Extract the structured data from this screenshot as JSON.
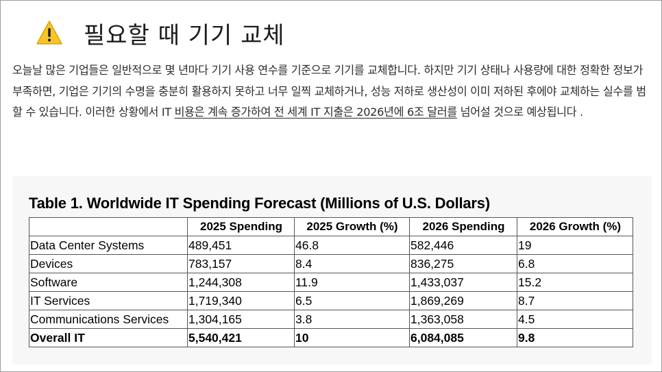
{
  "heading": {
    "icon": "warning-icon",
    "title": "필요할 때 기기 교체"
  },
  "paragraph": {
    "part1": "오늘날 많은 기업들은 일반적으로 몇 년마다 기기 사용 연수를 기준으로 기기를 교체합니다. 하지만 기기 상태나 사용량에 대한 정확한 정보가 부족하면, 기업은 기기의 수명을 충분히 활용하지 못하고 너무 일찍 교체하거나, 성능 저하로 생산성이 이미 저하된 후에야 교체하는 실수를 범할 수 있습니다. 이러한 상황에서 IT ",
    "link_text": "비용은 계속 증가하여 전 세계 IT 지출은 2026년에 6조 달러를",
    "part2": " 넘어설 것으로 예상됩니다 ."
  },
  "table": {
    "title": "Table 1. Worldwide IT Spending Forecast (Millions of U.S. Dollars)",
    "headers": [
      "",
      "2025 Spending",
      "2025 Growth (%)",
      "2026 Spending",
      "2026 Growth (%)"
    ],
    "rows": [
      [
        "Data Center Systems",
        "489,451",
        "46.8",
        "582,446",
        "19"
      ],
      [
        "Devices",
        "783,157",
        "8.4",
        "836,275",
        "6.8"
      ],
      [
        "Software",
        "1,244,308",
        "11.9",
        "1,433,037",
        "15.2"
      ],
      [
        "IT Services",
        "1,719,340",
        "6.5",
        "1,869,269",
        "8.7"
      ],
      [
        "Communications Services",
        "1,304,165",
        "3.8",
        "1,363,058",
        "4.5"
      ],
      [
        "Overall IT",
        "5,540,421",
        "10",
        "6,084,085",
        "9.8"
      ]
    ]
  },
  "colors": {
    "warning": "#f7c52b",
    "text": "#2b2b2b",
    "panel": "#f7f7f7",
    "border": "#555555"
  }
}
